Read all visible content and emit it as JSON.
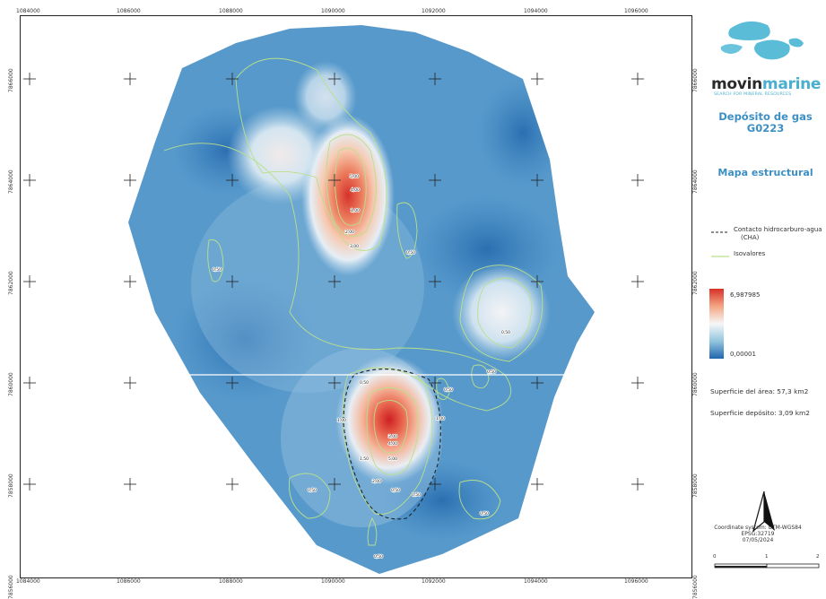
{
  "logo": {
    "name_part1": "movin",
    "name_part2": "marine",
    "tagline": "SEARCH FOR MINERAL RESOURCES",
    "accent_color": "#4aaecf"
  },
  "title": {
    "line1": "Depósito de gas",
    "line2": "G0223",
    "subtitle": "Mapa estructural",
    "color": "#3d8fc4"
  },
  "legend": {
    "contact_label": "Contacto hidrocarburo-agua",
    "contact_abbrev": "(CHA)",
    "isovalues_label": "Isovalores",
    "colorbar_max": "6,987985",
    "colorbar_min": "0,00001",
    "colorbar_colors": [
      "#d73027",
      "#f4a582",
      "#f7f7f7",
      "#92c5de",
      "#2166ac"
    ]
  },
  "info": {
    "area_total": "Superficie del área: 57,3 km2",
    "area_deposit": "Superficie depósito: 3,09 km2"
  },
  "north_arrow": {
    "label": "N",
    "icon": "north-arrow-icon"
  },
  "coords": {
    "system": "Coordinate system: UTM-WGS84",
    "epsg": "EPSG:32719",
    "date": "07/05/2024"
  },
  "scale_bar": {
    "labels": [
      "0",
      "1",
      "2"
    ]
  },
  "map": {
    "x_ticks_top": [
      "1084000",
      "1086000",
      "1088000",
      "1090000",
      "1092000",
      "1094000",
      "1096000"
    ],
    "x_ticks_bottom": [
      "1084000",
      "1086000",
      "1088000",
      "1090000",
      "1092000",
      "1094000",
      "1096000"
    ],
    "y_ticks_left": [
      "7866000",
      "7864000",
      "7862000",
      "7860000",
      "7858000",
      "7856000"
    ],
    "y_ticks_right": [
      "7866000",
      "7864000",
      "7862000",
      "7860000",
      "7858000",
      "7856000"
    ],
    "contour_labels": [
      "1,00",
      "2,00",
      "3,00",
      "4,00",
      "5,00",
      "0,50",
      "0,50",
      "0,50",
      "0,50",
      "0,50",
      "0,50",
      "0,50",
      "0,50",
      "0,50",
      "1,00",
      "1,00",
      "1,50",
      "2,00",
      "3,00",
      "4,00",
      "5,00",
      "0,50",
      "0,50"
    ]
  }
}
